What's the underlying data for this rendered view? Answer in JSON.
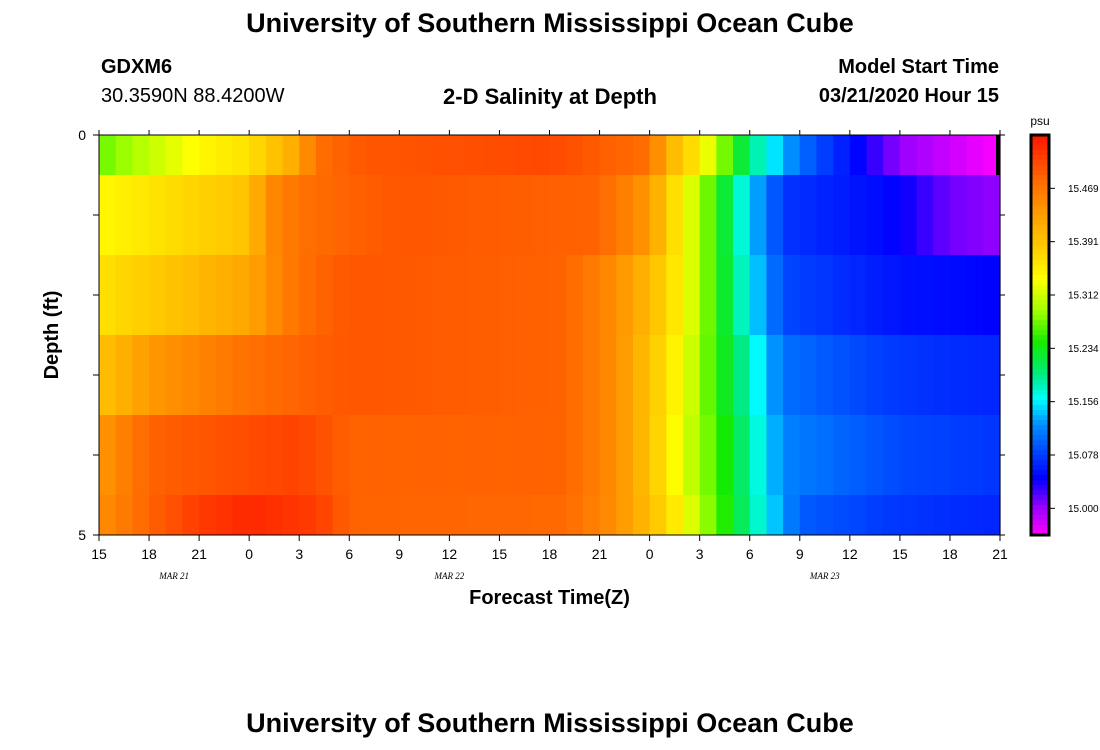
{
  "header": {
    "title": "University of Southern Mississippi Ocean Cube",
    "station": "GDXM6",
    "coords": "30.3590N 88.4200W",
    "plot_title": "2-D Salinity at Depth",
    "start_label": "Model Start Time",
    "start_time": "03/21/2020 Hour 15"
  },
  "footer": {
    "title": "University of Southern Mississippi Ocean Cube"
  },
  "chart_data": {
    "type": "heatmap",
    "title": "2-D Salinity at Depth",
    "xlabel": "Forecast Time(Z)",
    "ylabel": "Depth (ft)",
    "units": "psu",
    "ylim": [
      0,
      5
    ],
    "y_tick_labels": [
      "0",
      "5"
    ],
    "x_tick_labels": [
      "15",
      "18",
      "21",
      "0",
      "3",
      "6",
      "9",
      "12",
      "15",
      "18",
      "21",
      "0",
      "3",
      "6",
      "9",
      "12",
      "15",
      "18",
      "21"
    ],
    "date_labels": [
      {
        "text": "MAR 21",
        "tick_index": 1.5
      },
      {
        "text": "MAR 22",
        "tick_index": 7
      },
      {
        "text": "MAR 23",
        "tick_index": 14.5
      }
    ],
    "x_hours_start": 15,
    "x_hours_span": 54,
    "colorbar": {
      "labels": [
        "15.469",
        "15.391",
        "15.312",
        "15.234",
        "15.156",
        "15.078",
        "15.000"
      ],
      "min": 14.96,
      "max": 15.53
    },
    "depth_rows": [
      {
        "depth": "0-0.5",
        "keys": [
          [
            0,
            15.26
          ],
          [
            6,
            15.33
          ],
          [
            9,
            15.35
          ],
          [
            12,
            15.41
          ],
          [
            13,
            15.46
          ],
          [
            16,
            15.48
          ],
          [
            27,
            15.49
          ],
          [
            33,
            15.46
          ],
          [
            34,
            15.4
          ],
          [
            36,
            15.34
          ],
          [
            39,
            15.19
          ],
          [
            42,
            15.1
          ],
          [
            48,
            15.0
          ],
          [
            51,
            14.98
          ],
          [
            54,
            14.96
          ]
        ]
      },
      {
        "depth": "0.5-1.5",
        "keys": [
          [
            0,
            15.33
          ],
          [
            9,
            15.38
          ],
          [
            10,
            15.43
          ],
          [
            12,
            15.46
          ],
          [
            18,
            15.48
          ],
          [
            30,
            15.47
          ],
          [
            33,
            15.42
          ],
          [
            35,
            15.33
          ],
          [
            37,
            15.24
          ],
          [
            39,
            15.14
          ],
          [
            41,
            15.07
          ],
          [
            48,
            15.04
          ],
          [
            51,
            15.01
          ],
          [
            54,
            15.0
          ]
        ]
      },
      {
        "depth": "1.5-2.5",
        "keys": [
          [
            0,
            15.35
          ],
          [
            9,
            15.41
          ],
          [
            12,
            15.46
          ],
          [
            15,
            15.48
          ],
          [
            28,
            15.47
          ],
          [
            31,
            15.43
          ],
          [
            33,
            15.39
          ],
          [
            35,
            15.33
          ],
          [
            37,
            15.24
          ],
          [
            39,
            15.15
          ],
          [
            41,
            15.08
          ],
          [
            48,
            15.05
          ],
          [
            54,
            15.04
          ]
        ]
      },
      {
        "depth": "2.5-3.5",
        "keys": [
          [
            0,
            15.38
          ],
          [
            3,
            15.42
          ],
          [
            9,
            15.46
          ],
          [
            15,
            15.48
          ],
          [
            28,
            15.47
          ],
          [
            31,
            15.43
          ],
          [
            33,
            15.38
          ],
          [
            35,
            15.32
          ],
          [
            37,
            15.24
          ],
          [
            39,
            15.17
          ],
          [
            41,
            15.1
          ],
          [
            48,
            15.07
          ],
          [
            54,
            15.06
          ]
        ]
      },
      {
        "depth": "3.5-4.5",
        "keys": [
          [
            0,
            15.42
          ],
          [
            3,
            15.47
          ],
          [
            6,
            15.48
          ],
          [
            12,
            15.495
          ],
          [
            15,
            15.47
          ],
          [
            28,
            15.47
          ],
          [
            31,
            15.43
          ],
          [
            33,
            15.38
          ],
          [
            35,
            15.31
          ],
          [
            37,
            15.25
          ],
          [
            39,
            15.18
          ],
          [
            41,
            15.11
          ],
          [
            48,
            15.08
          ],
          [
            54,
            15.07
          ]
        ]
      },
      {
        "depth": "4.5-5",
        "keys": [
          [
            0,
            15.43
          ],
          [
            3,
            15.47
          ],
          [
            6,
            15.5
          ],
          [
            9,
            15.515
          ],
          [
            13,
            15.5
          ],
          [
            15,
            15.47
          ],
          [
            28,
            15.465
          ],
          [
            31,
            15.43
          ],
          [
            34,
            15.36
          ],
          [
            36,
            15.29
          ],
          [
            38,
            15.22
          ],
          [
            40,
            15.15
          ],
          [
            42,
            15.09
          ],
          [
            48,
            15.07
          ],
          [
            54,
            15.06
          ]
        ]
      }
    ]
  }
}
